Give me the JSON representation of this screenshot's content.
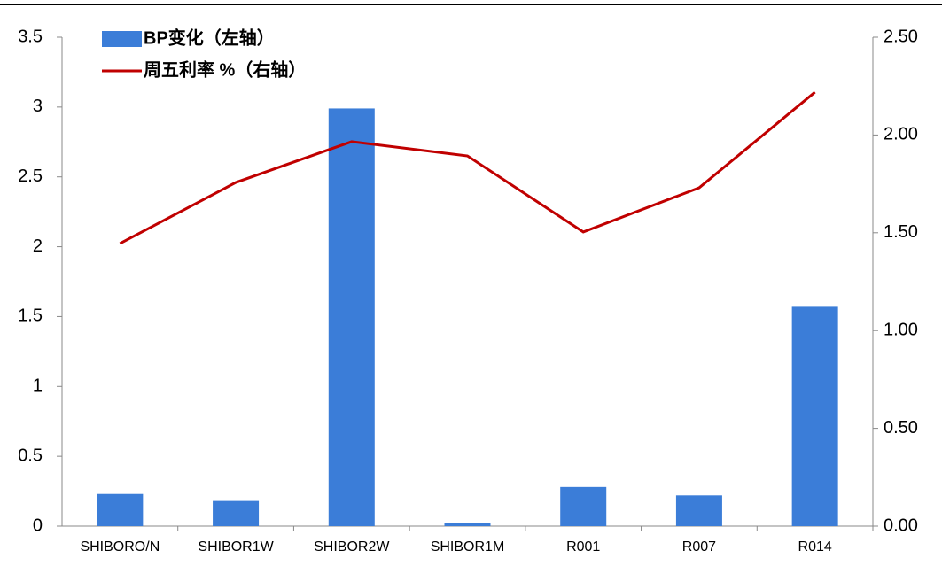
{
  "chart_data": {
    "type": "bar_line",
    "categories": [
      "SHIBORO/N",
      "SHIBOR1W",
      "SHIBOR2W",
      "SHIBOR1M",
      "R001",
      "R007",
      "R014"
    ],
    "series": [
      {
        "name": "BP变化（左轴）",
        "color": "#3b7dd8",
        "type": "bar",
        "values": [
          0.23,
          0.18,
          2.99,
          0.02,
          0.28,
          0.22,
          1.57
        ]
      },
      {
        "name": "周五利率 %（右轴）",
        "color": "#c00000",
        "type": "line",
        "axis": "y2",
        "values": [
          1.445,
          1.757,
          1.966,
          1.893,
          1.504,
          1.73,
          2.219
        ]
      }
    ],
    "ylim": [
      0,
      3.5
    ],
    "yticks": [
      0,
      0.5,
      1,
      1.5,
      2,
      2.5,
      3,
      3.5
    ],
    "y2lim": [
      0,
      2.5
    ],
    "y2ticks": [
      {
        "value": 0,
        "label": "0.00"
      },
      {
        "value": 0.5,
        "label": "0.50"
      },
      {
        "value": 1,
        "label": "1.00"
      },
      {
        "value": 1.5,
        "label": "1.50"
      },
      {
        "value": 2,
        "label": "2.00"
      },
      {
        "value": 2.5,
        "label": "2.50"
      }
    ],
    "legend": "top-left"
  }
}
